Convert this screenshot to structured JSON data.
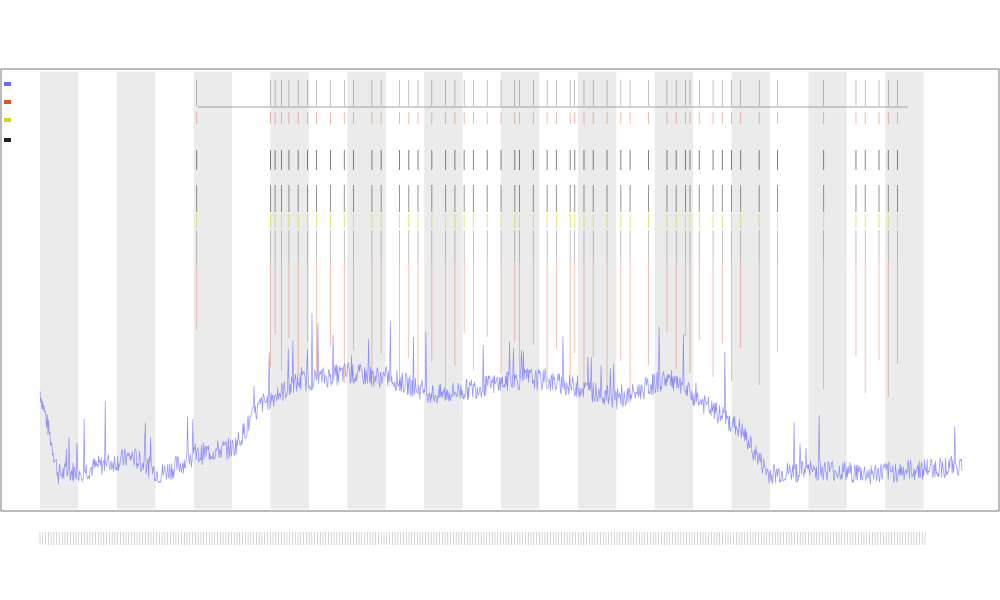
{
  "chart_data": {
    "type": "line",
    "title": [
      "",
      "",
      ""
    ],
    "xlabel": "",
    "ylabel": "",
    "legend_position": "left",
    "legend": [
      {
        "label": "",
        "color": "#6a6aff"
      },
      {
        "label": "",
        "color": "#e0522a"
      },
      {
        "label": "",
        "color": "#d8d21c"
      },
      {
        "label": "",
        "color": "#222222"
      }
    ],
    "colors": {
      "signal": "#6a6aff",
      "warn": "#e05a3a",
      "alert": "#f2a640",
      "yellow": "#d8d21c",
      "black": "#222222",
      "band": "#ebebeb"
    },
    "row_labels": [
      "",
      ""
    ],
    "grid": false,
    "band_count": 12,
    "events": [
      0.17,
      0.25,
      0.255,
      0.262,
      0.27,
      0.28,
      0.29,
      0.3,
      0.315,
      0.33,
      0.34,
      0.36,
      0.37,
      0.39,
      0.4,
      0.41,
      0.425,
      0.44,
      0.45,
      0.46,
      0.47,
      0.485,
      0.5,
      0.515,
      0.52,
      0.535,
      0.55,
      0.56,
      0.575,
      0.58,
      0.59,
      0.6,
      0.615,
      0.63,
      0.64,
      0.66,
      0.68,
      0.69,
      0.7,
      0.705,
      0.715,
      0.73,
      0.74,
      0.75,
      0.76,
      0.78,
      0.8,
      0.85,
      0.885,
      0.895,
      0.91,
      0.92,
      0.93
    ],
    "signal_profile": [
      {
        "x": 0.0,
        "y": 0.27
      },
      {
        "x": 0.02,
        "y": 0.08
      },
      {
        "x": 0.05,
        "y": 0.09
      },
      {
        "x": 0.1,
        "y": 0.12
      },
      {
        "x": 0.13,
        "y": 0.08
      },
      {
        "x": 0.18,
        "y": 0.13
      },
      {
        "x": 0.21,
        "y": 0.14
      },
      {
        "x": 0.24,
        "y": 0.24
      },
      {
        "x": 0.28,
        "y": 0.29
      },
      {
        "x": 0.33,
        "y": 0.31
      },
      {
        "x": 0.38,
        "y": 0.3
      },
      {
        "x": 0.43,
        "y": 0.26
      },
      {
        "x": 0.48,
        "y": 0.28
      },
      {
        "x": 0.53,
        "y": 0.3
      },
      {
        "x": 0.58,
        "y": 0.28
      },
      {
        "x": 0.63,
        "y": 0.25
      },
      {
        "x": 0.68,
        "y": 0.3
      },
      {
        "x": 0.72,
        "y": 0.24
      },
      {
        "x": 0.76,
        "y": 0.18
      },
      {
        "x": 0.79,
        "y": 0.08
      },
      {
        "x": 0.85,
        "y": 0.09
      },
      {
        "x": 0.9,
        "y": 0.08
      },
      {
        "x": 0.95,
        "y": 0.09
      },
      {
        "x": 1.0,
        "y": 0.1
      }
    ]
  }
}
